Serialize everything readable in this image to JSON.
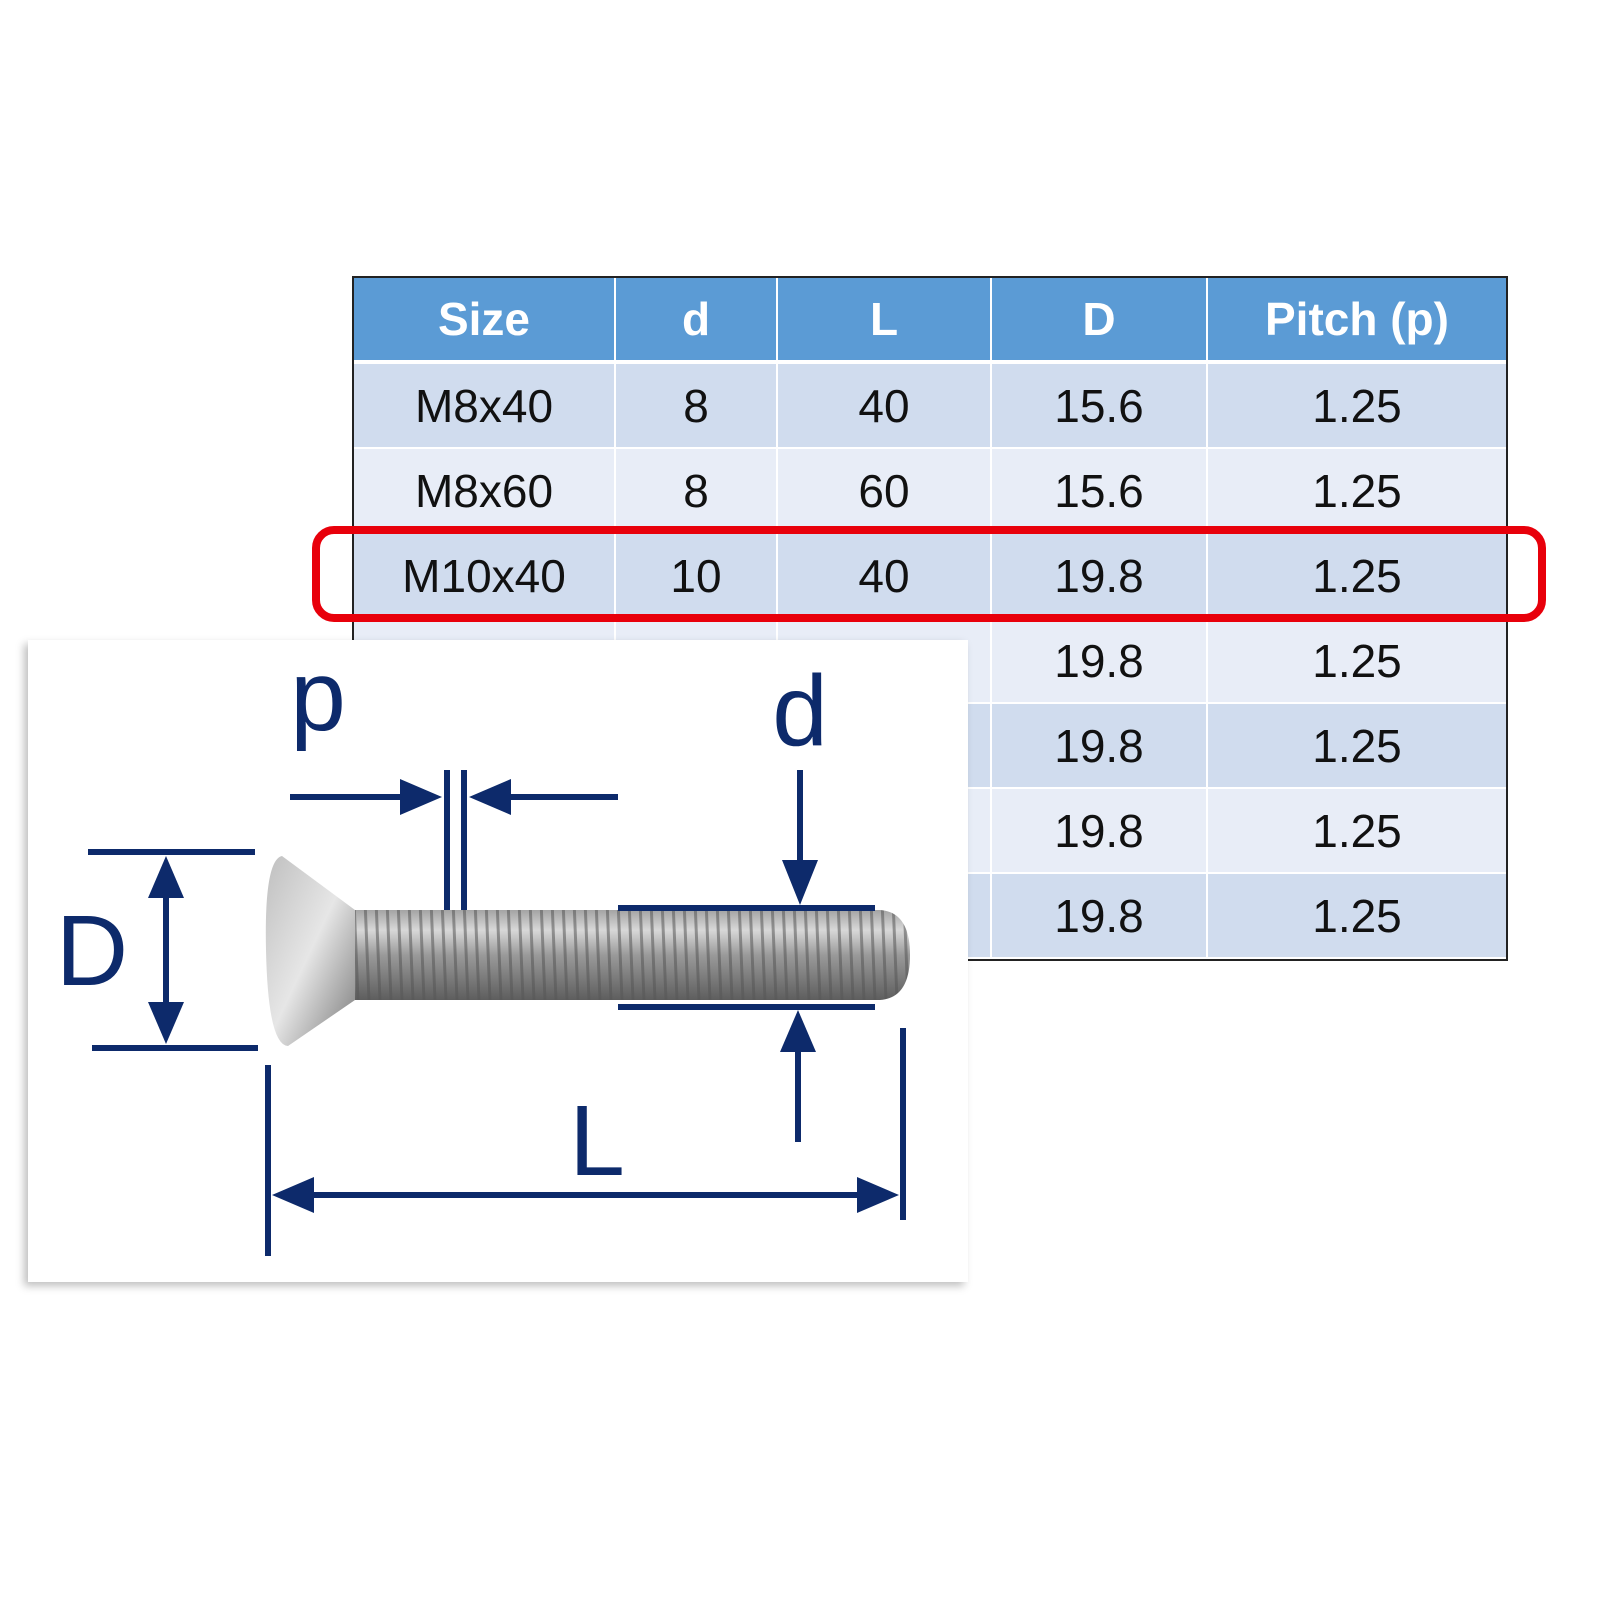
{
  "table": {
    "headers": [
      "Size",
      "d",
      "L",
      "D",
      "Pitch (p)"
    ],
    "rows": [
      [
        "M8x40",
        "8",
        "40",
        "15.6",
        "1.25"
      ],
      [
        "M8x60",
        "8",
        "60",
        "15.6",
        "1.25"
      ],
      [
        "M10x40",
        "10",
        "40",
        "19.8",
        "1.25"
      ],
      [
        "",
        "",
        "",
        "19.8",
        "1.25"
      ],
      [
        "",
        "",
        "",
        "19.8",
        "1.25"
      ],
      [
        "",
        "",
        "",
        "19.8",
        "1.25"
      ],
      [
        "",
        "",
        "",
        "19.8",
        "1.25"
      ]
    ],
    "highlighted_row": 2
  },
  "diagram": {
    "labels": {
      "p": "p",
      "d": "d",
      "D": "D",
      "L": "L"
    }
  },
  "colors": {
    "header": "#5b9bd5",
    "row_odd": "#d0dcee",
    "row_even": "#e8edf7",
    "highlight": "#e8000b",
    "dimension": "#0d2a6b"
  }
}
